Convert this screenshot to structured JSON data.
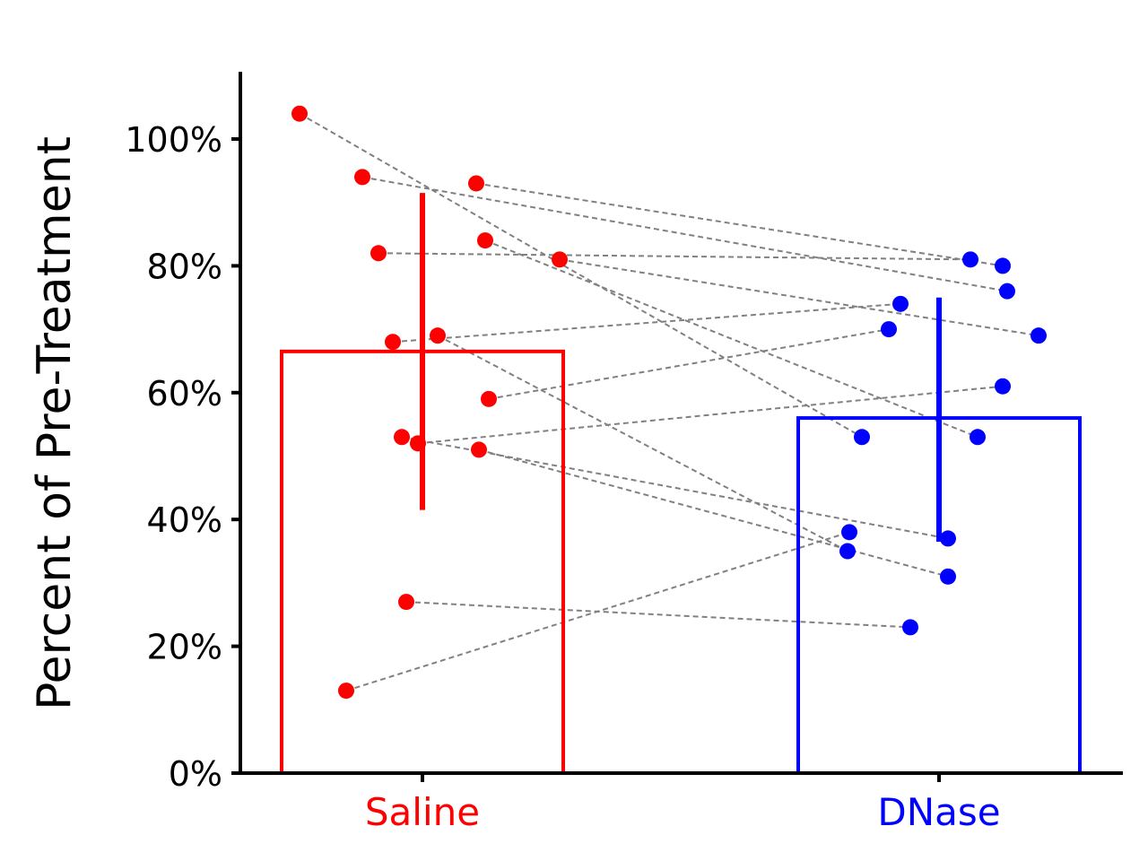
{
  "chart_data": {
    "type": "bar",
    "title": "",
    "xlabel": "",
    "ylabel": "Percent of Pre-Treatment",
    "ylim": [
      0,
      110
    ],
    "yticks": [
      0,
      20,
      40,
      60,
      80,
      100
    ],
    "ytick_labels": [
      "0%",
      "20%",
      "40%",
      "60%",
      "80%",
      "100%"
    ],
    "grid": false,
    "legend": "none",
    "categories": [
      "Saline",
      "DNase"
    ],
    "category_colors": [
      "#ff0000",
      "#0000ff"
    ],
    "bars": [
      {
        "category": "Saline",
        "mean": 66.5,
        "error_low": 41.5,
        "error_high": 91.5
      },
      {
        "category": "DNase",
        "mean": 56,
        "error_low": 36.5,
        "error_high": 75
      }
    ],
    "paired_points": [
      {
        "saline": 104,
        "dnase": 53
      },
      {
        "saline": 94,
        "dnase": 76
      },
      {
        "saline": 93,
        "dnase": 80
      },
      {
        "saline": 84,
        "dnase": 53
      },
      {
        "saline": 82,
        "dnase": 81
      },
      {
        "saline": 81,
        "dnase": 69
      },
      {
        "saline": 69,
        "dnase": 35
      },
      {
        "saline": 68,
        "dnase": 74
      },
      {
        "saline": 59,
        "dnase": 70
      },
      {
        "saline": 53,
        "dnase": 37
      },
      {
        "saline": 52,
        "dnase": 61
      },
      {
        "saline": 51,
        "dnase": 31
      },
      {
        "saline": 27,
        "dnase": 23
      },
      {
        "saline": 13,
        "dnase": 38
      }
    ],
    "connector_color": "#808080"
  }
}
